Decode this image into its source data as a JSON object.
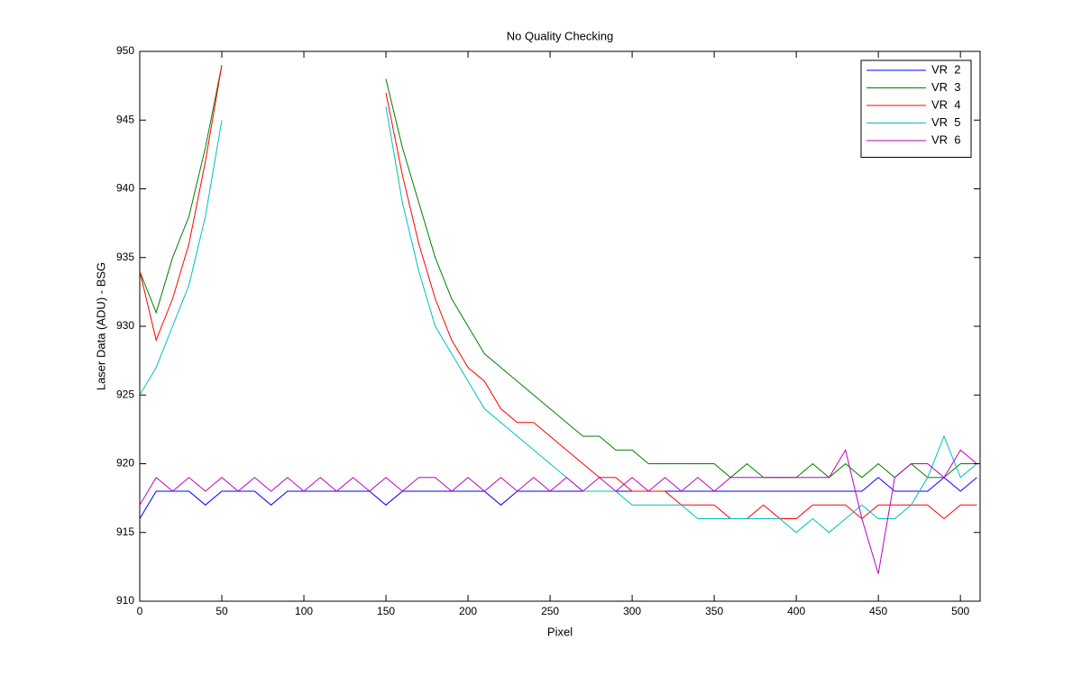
{
  "chart_data": {
    "type": "line",
    "title": "No Quality Checking",
    "xlabel": "Pixel",
    "ylabel": "Laser Data (ADU) - BSG",
    "x": [
      0,
      10,
      20,
      30,
      40,
      50,
      60,
      70,
      80,
      90,
      100,
      110,
      120,
      130,
      140,
      150,
      160,
      170,
      180,
      190,
      200,
      210,
      220,
      230,
      240,
      250,
      260,
      270,
      280,
      290,
      300,
      310,
      320,
      330,
      340,
      350,
      360,
      370,
      380,
      390,
      400,
      410,
      420,
      430,
      440,
      450,
      460,
      470,
      480,
      490,
      500,
      510
    ],
    "series": [
      {
        "name": "VR  2",
        "color": "#0000ff",
        "values": [
          916,
          918,
          918,
          918,
          917,
          918,
          918,
          918,
          917,
          918,
          918,
          918,
          918,
          918,
          918,
          917,
          918,
          918,
          918,
          918,
          918,
          918,
          917,
          918,
          918,
          918,
          918,
          918,
          918,
          918,
          918,
          918,
          918,
          918,
          918,
          918,
          918,
          918,
          918,
          918,
          918,
          918,
          918,
          918,
          918,
          919,
          918,
          918,
          918,
          919,
          918,
          919
        ]
      },
      {
        "name": "VR  3",
        "color": "#008000",
        "values": [
          934,
          931,
          935,
          938,
          943,
          949,
          null,
          null,
          null,
          null,
          null,
          null,
          null,
          null,
          null,
          948,
          943,
          939,
          935,
          932,
          930,
          928,
          927,
          926,
          925,
          924,
          923,
          922,
          922,
          921,
          921,
          920,
          920,
          920,
          920,
          920,
          919,
          920,
          919,
          919,
          919,
          920,
          919,
          920,
          919,
          920,
          919,
          920,
          919,
          919,
          920,
          920
        ]
      },
      {
        "name": "VR  4",
        "color": "#ff0000",
        "values": [
          934,
          929,
          932,
          936,
          942,
          949,
          null,
          null,
          null,
          null,
          null,
          null,
          null,
          null,
          null,
          947,
          941,
          936,
          932,
          929,
          927,
          926,
          924,
          923,
          923,
          922,
          921,
          920,
          919,
          919,
          918,
          918,
          918,
          917,
          917,
          917,
          916,
          916,
          917,
          916,
          916,
          917,
          917,
          917,
          916,
          917,
          917,
          917,
          917,
          916,
          917,
          917
        ]
      },
      {
        "name": "VR  5",
        "color": "#00bfbf",
        "values": [
          925,
          927,
          930,
          933,
          938,
          945,
          null,
          null,
          null,
          null,
          null,
          null,
          null,
          null,
          null,
          946,
          939,
          934,
          930,
          928,
          926,
          924,
          923,
          922,
          921,
          920,
          919,
          918,
          918,
          918,
          917,
          917,
          917,
          917,
          916,
          916,
          916,
          916,
          916,
          916,
          915,
          916,
          915,
          916,
          917,
          916,
          916,
          917,
          919,
          922,
          919,
          920
        ]
      },
      {
        "name": "VR  6",
        "color": "#bf00bf",
        "values": [
          917,
          919,
          918,
          919,
          918,
          919,
          918,
          919,
          918,
          919,
          918,
          919,
          918,
          919,
          918,
          919,
          918,
          919,
          919,
          918,
          919,
          918,
          919,
          918,
          919,
          918,
          919,
          918,
          919,
          918,
          919,
          918,
          919,
          918,
          919,
          918,
          919,
          919,
          919,
          919,
          919,
          919,
          919,
          921,
          916,
          912,
          919,
          920,
          920,
          919,
          921,
          920
        ]
      }
    ],
    "xlim": [
      0,
      512
    ],
    "ylim": [
      910,
      950
    ],
    "xticks": [
      0,
      50,
      100,
      150,
      200,
      250,
      300,
      350,
      400,
      450,
      500
    ],
    "yticks": [
      910,
      915,
      920,
      925,
      930,
      935,
      940,
      945,
      950
    ],
    "legend": "top-right"
  }
}
